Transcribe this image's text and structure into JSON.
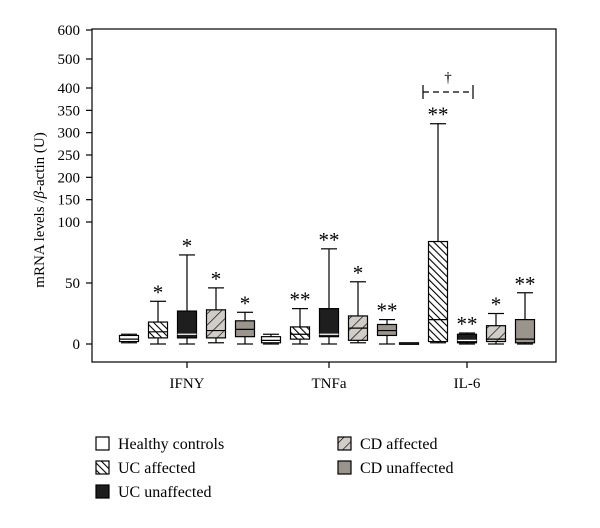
{
  "chart_data": {
    "type": "box",
    "ylabel_parts": [
      "mRNA levels /",
      "β",
      "-actin (U)"
    ],
    "yaxis": {
      "scale": "broken",
      "segments": [
        {
          "range": [
            0,
            100
          ],
          "ticks": [
            0,
            50,
            100
          ]
        },
        {
          "range": [
            100,
            400
          ],
          "ticks": [
            100,
            150,
            200,
            250,
            300,
            350,
            400
          ]
        },
        {
          "range": [
            400,
            600
          ],
          "ticks": [
            400,
            500,
            600
          ]
        }
      ],
      "ylim": [
        0,
        600
      ]
    },
    "categories": [
      "IFNY",
      "TNFa",
      "IL-6"
    ],
    "series": [
      {
        "name": "Healthy controls",
        "pattern": "empty"
      },
      {
        "name": "UC affected",
        "pattern": "hatch-dense"
      },
      {
        "name": "UC unaffected",
        "pattern": "solid-dark"
      },
      {
        "name": "CD affected",
        "pattern": "hatch-wide"
      },
      {
        "name": "CD unaffected",
        "pattern": "solid-gray"
      }
    ],
    "boxes": [
      [
        {
          "min": 1,
          "q1": 2,
          "median": 4,
          "q3": 7,
          "max": 8,
          "sig": ""
        },
        {
          "min": 0,
          "q1": 5,
          "median": 10,
          "q3": 18,
          "max": 35,
          "sig": "*"
        },
        {
          "min": 0,
          "q1": 5,
          "median": 8,
          "q3": 27,
          "max": 73,
          "sig": "*"
        },
        {
          "min": 1,
          "q1": 5,
          "median": 11,
          "q3": 28,
          "max": 46,
          "sig": "*"
        },
        {
          "min": 0,
          "q1": 6,
          "median": 12,
          "q3": 19,
          "max": 26,
          "sig": "*"
        }
      ],
      [
        {
          "min": 0,
          "q1": 1,
          "median": 3,
          "q3": 6,
          "max": 8,
          "sig": ""
        },
        {
          "min": 0,
          "q1": 4,
          "median": 8,
          "q3": 14,
          "max": 29,
          "sig": "**"
        },
        {
          "min": 0,
          "q1": 6,
          "median": 8,
          "q3": 29,
          "max": 78,
          "sig": "**"
        },
        {
          "min": 1,
          "q1": 3,
          "median": 13,
          "q3": 23,
          "max": 51,
          "sig": "*"
        },
        {
          "min": 0,
          "q1": 7,
          "median": 11,
          "q3": 16,
          "max": 20,
          "sig": "**"
        }
      ],
      [
        {
          "min": 0,
          "q1": 0,
          "median": 0,
          "q3": 1,
          "max": 1,
          "sig": ""
        },
        {
          "min": 1,
          "q1": 2,
          "median": 20,
          "q3": 84,
          "max": 320,
          "sig": "**"
        },
        {
          "min": 0,
          "q1": 1,
          "median": 3,
          "q3": 8,
          "max": 9,
          "sig": "**"
        },
        {
          "min": 0,
          "q1": 2,
          "median": 4,
          "q3": 15,
          "max": 25,
          "sig": "*"
        },
        {
          "min": 0,
          "q1": 1,
          "median": 4,
          "q3": 20,
          "max": 42,
          "sig": "**"
        }
      ]
    ],
    "annotations": [
      {
        "text": "†",
        "category": "IL-6",
        "between": [
          "UC affected",
          "UC unaffected"
        ],
        "y": 400
      }
    ]
  },
  "colors": {
    "axis": "#000000",
    "uc_unaffected": "#1e1e1e",
    "cd_unaffected": "#9a948c",
    "hatch": "#000000"
  }
}
